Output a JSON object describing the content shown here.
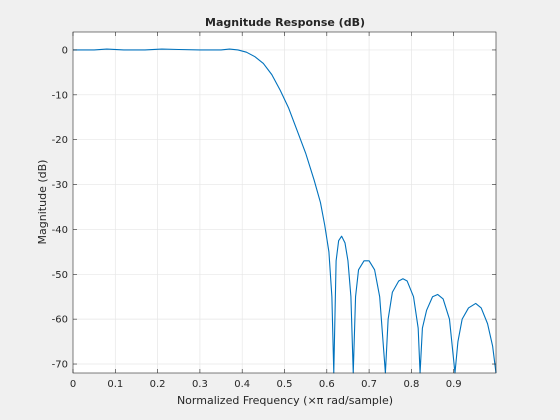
{
  "chart_data": {
    "type": "line",
    "title": "Magnitude Response (dB)",
    "xlabel": "Normalized Frequency (×π rad/sample)",
    "ylabel": "Magnitude (dB)",
    "xlim": [
      0,
      1
    ],
    "ylim": [
      -72,
      4
    ],
    "grid": true,
    "line_color": "#0072bd",
    "x_ticks": [
      "0",
      "0.1",
      "0.2",
      "0.3",
      "0.4",
      "0.5",
      "0.6",
      "0.7",
      "0.8",
      "0.9"
    ],
    "y_ticks": [
      "0",
      "-10",
      "-20",
      "-30",
      "-40",
      "-50",
      "-60",
      "-70"
    ],
    "x_tick_values": [
      0,
      0.1,
      0.2,
      0.3,
      0.4,
      0.5,
      0.6,
      0.7,
      0.8,
      0.9
    ],
    "y_tick_values": [
      0,
      -10,
      -20,
      -30,
      -40,
      -50,
      -60,
      -70
    ],
    "series": [
      {
        "points": [
          [
            0,
            0
          ],
          [
            0.05,
            0
          ],
          [
            0.08,
            0.2
          ],
          [
            0.12,
            0
          ],
          [
            0.17,
            0
          ],
          [
            0.21,
            0.2
          ],
          [
            0.25,
            0.1
          ],
          [
            0.3,
            0
          ],
          [
            0.35,
            0
          ],
          [
            0.37,
            0.2
          ],
          [
            0.39,
            0
          ],
          [
            0.41,
            -0.5
          ],
          [
            0.43,
            -1.5
          ],
          [
            0.45,
            -3
          ],
          [
            0.47,
            -5.5
          ],
          [
            0.49,
            -9
          ],
          [
            0.51,
            -13
          ],
          [
            0.53,
            -18
          ],
          [
            0.55,
            -23
          ],
          [
            0.57,
            -29
          ],
          [
            0.585,
            -34
          ],
          [
            0.595,
            -39
          ],
          [
            0.605,
            -45
          ],
          [
            0.612,
            -55
          ],
          [
            0.6165,
            -72
          ],
          [
            0.622,
            -47
          ],
          [
            0.628,
            -42.5
          ],
          [
            0.635,
            -41.5
          ],
          [
            0.643,
            -43
          ],
          [
            0.65,
            -47
          ],
          [
            0.657,
            -55
          ],
          [
            0.6625,
            -72
          ],
          [
            0.668,
            -55
          ],
          [
            0.675,
            -49
          ],
          [
            0.688,
            -47
          ],
          [
            0.7,
            -47
          ],
          [
            0.713,
            -49
          ],
          [
            0.725,
            -55
          ],
          [
            0.7385,
            -72
          ],
          [
            0.745,
            -60
          ],
          [
            0.755,
            -54
          ],
          [
            0.77,
            -51.5
          ],
          [
            0.78,
            -51
          ],
          [
            0.79,
            -51.5
          ],
          [
            0.805,
            -55
          ],
          [
            0.816,
            -62
          ],
          [
            0.8205,
            -72
          ],
          [
            0.826,
            -62
          ],
          [
            0.836,
            -58
          ],
          [
            0.85,
            -55
          ],
          [
            0.862,
            -54.5
          ],
          [
            0.875,
            -55.5
          ],
          [
            0.89,
            -60
          ],
          [
            0.903,
            -72
          ],
          [
            0.91,
            -65
          ],
          [
            0.92,
            -60
          ],
          [
            0.935,
            -57.5
          ],
          [
            0.952,
            -56.5
          ],
          [
            0.965,
            -57.5
          ],
          [
            0.98,
            -61
          ],
          [
            0.992,
            -66
          ],
          [
            1.0,
            -72
          ]
        ]
      }
    ]
  }
}
